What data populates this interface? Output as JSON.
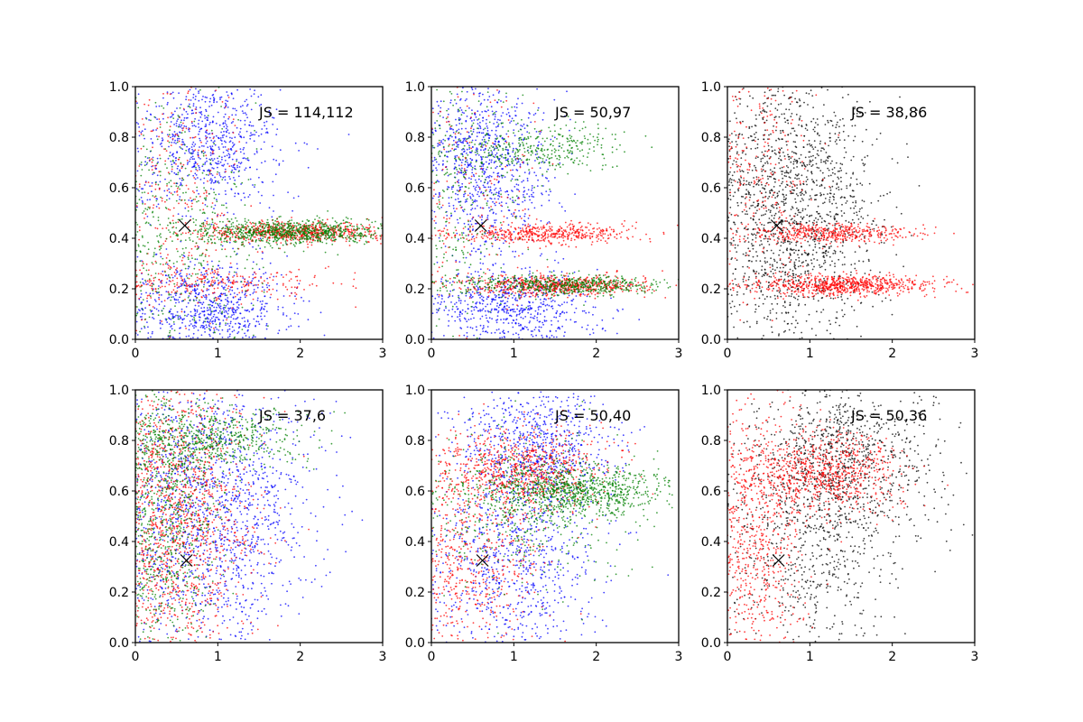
{
  "chart_data": [
    {
      "type": "scatter",
      "annotation": "JS = 114,112",
      "xlim": [
        0,
        3
      ],
      "ylim": [
        0,
        1
      ],
      "xticks": [
        "0",
        "1",
        "2",
        "3"
      ],
      "yticks": [
        "0.0",
        "0.2",
        "0.4",
        "0.6",
        "0.8",
        "1.0"
      ],
      "marker": {
        "x": 0.6,
        "y": 0.45
      },
      "series": [
        {
          "color": "#0000ff",
          "count": 1500,
          "clusters": [
            {
              "w": 0.5,
              "mx": 0.9,
              "sx": 0.45,
              "my": 0.78,
              "sy": 0.14
            },
            {
              "w": 0.5,
              "mx": 0.9,
              "sx": 0.45,
              "my": 0.12,
              "sy": 0.1
            }
          ]
        },
        {
          "color": "#ff0000",
          "count": 1200,
          "clusters": [
            {
              "w": 0.55,
              "mx": 1.9,
              "sx": 0.6,
              "my": 0.425,
              "sy": 0.02
            },
            {
              "w": 0.2,
              "mx": 1.0,
              "sx": 0.7,
              "my": 0.22,
              "sy": 0.03
            },
            {
              "w": 0.25,
              "mx": 0.5,
              "sx": 0.4,
              "my": 0.6,
              "sy": 0.3
            }
          ]
        },
        {
          "color": "#008000",
          "count": 1300,
          "clusters": [
            {
              "w": 0.65,
              "mx": 1.9,
              "sx": 0.6,
              "my": 0.425,
              "sy": 0.025
            },
            {
              "w": 0.35,
              "mx": 0.5,
              "sx": 0.5,
              "my": 0.4,
              "sy": 0.3
            }
          ]
        }
      ]
    },
    {
      "type": "scatter",
      "annotation": "JS = 50,97",
      "xlim": [
        0,
        3
      ],
      "ylim": [
        0,
        1
      ],
      "xticks": [
        "0",
        "1",
        "2",
        "3"
      ],
      "yticks": [
        "0.0",
        "0.2",
        "0.4",
        "0.6",
        "0.8",
        "1.0"
      ],
      "marker": {
        "x": 0.6,
        "y": 0.45
      },
      "series": [
        {
          "color": "#0000ff",
          "count": 1500,
          "clusters": [
            {
              "w": 0.55,
              "mx": 0.7,
              "sx": 0.4,
              "my": 0.72,
              "sy": 0.17
            },
            {
              "w": 0.45,
              "mx": 1.0,
              "sx": 0.5,
              "my": 0.12,
              "sy": 0.08
            }
          ]
        },
        {
          "color": "#ff0000",
          "count": 1300,
          "clusters": [
            {
              "w": 0.35,
              "mx": 1.4,
              "sx": 0.55,
              "my": 0.42,
              "sy": 0.02
            },
            {
              "w": 0.5,
              "mx": 1.5,
              "sx": 0.55,
              "my": 0.215,
              "sy": 0.02
            },
            {
              "w": 0.15,
              "mx": 0.5,
              "sx": 0.4,
              "my": 0.6,
              "sy": 0.3
            }
          ]
        },
        {
          "color": "#008000",
          "count": 1200,
          "clusters": [
            {
              "w": 0.45,
              "mx": 1.6,
              "sx": 0.6,
              "my": 0.215,
              "sy": 0.02
            },
            {
              "w": 0.3,
              "mx": 1.3,
              "sx": 0.55,
              "my": 0.75,
              "sy": 0.05
            },
            {
              "w": 0.25,
              "mx": 0.4,
              "sx": 0.4,
              "my": 0.6,
              "sy": 0.3
            }
          ]
        }
      ]
    },
    {
      "type": "scatter",
      "annotation": "JS = 38,86",
      "xlim": [
        0,
        3
      ],
      "ylim": [
        0,
        1
      ],
      "xticks": [
        "0",
        "1",
        "2",
        "3"
      ],
      "yticks": [
        "0.0",
        "0.2",
        "0.4",
        "0.6",
        "0.8",
        "1.0"
      ],
      "marker": {
        "x": 0.6,
        "y": 0.45
      },
      "series": [
        {
          "color": "#000000",
          "count": 1600,
          "clusters": [
            {
              "w": 1.0,
              "mx": 0.8,
              "sx": 0.5,
              "my": 0.5,
              "sy": 0.28
            }
          ]
        },
        {
          "color": "#ff0000",
          "count": 1400,
          "clusters": [
            {
              "w": 0.55,
              "mx": 1.4,
              "sx": 0.55,
              "my": 0.215,
              "sy": 0.02
            },
            {
              "w": 0.3,
              "mx": 1.3,
              "sx": 0.5,
              "my": 0.42,
              "sy": 0.02
            },
            {
              "w": 0.15,
              "mx": 0.4,
              "sx": 0.35,
              "my": 0.7,
              "sy": 0.25
            }
          ]
        }
      ]
    },
    {
      "type": "scatter",
      "annotation": "JS = 37,6",
      "xlim": [
        0,
        3
      ],
      "ylim": [
        0,
        1
      ],
      "xticks": [
        "0",
        "1",
        "2",
        "3"
      ],
      "yticks": [
        "0.0",
        "0.2",
        "0.4",
        "0.6",
        "0.8",
        "1.0"
      ],
      "marker": {
        "x": 0.62,
        "y": 0.325
      },
      "series": [
        {
          "color": "#0000ff",
          "count": 1500,
          "clusters": [
            {
              "w": 1.0,
              "mx": 0.95,
              "sx": 0.6,
              "my": 0.55,
              "sy": 0.28
            }
          ]
        },
        {
          "color": "#ff0000",
          "count": 1300,
          "clusters": [
            {
              "w": 1.0,
              "mx": 0.5,
              "sx": 0.45,
              "my": 0.5,
              "sy": 0.28
            }
          ]
        },
        {
          "color": "#008000",
          "count": 1300,
          "clusters": [
            {
              "w": 0.6,
              "mx": 0.4,
              "sx": 0.35,
              "my": 0.5,
              "sy": 0.28
            },
            {
              "w": 0.4,
              "mx": 0.9,
              "sx": 0.5,
              "my": 0.8,
              "sy": 0.06
            }
          ]
        }
      ]
    },
    {
      "type": "scatter",
      "annotation": "JS = 50,40",
      "xlim": [
        0,
        3
      ],
      "ylim": [
        0,
        1
      ],
      "xticks": [
        "0",
        "1",
        "2",
        "3"
      ],
      "yticks": [
        "0.0",
        "0.2",
        "0.4",
        "0.6",
        "0.8",
        "1.0"
      ],
      "marker": {
        "x": 0.62,
        "y": 0.325
      },
      "series": [
        {
          "color": "#0000ff",
          "count": 1500,
          "clusters": [
            {
              "w": 0.5,
              "mx": 1.3,
              "sx": 0.5,
              "my": 0.78,
              "sy": 0.12
            },
            {
              "w": 0.5,
              "mx": 1.0,
              "sx": 0.5,
              "my": 0.3,
              "sy": 0.2
            }
          ]
        },
        {
          "color": "#ff0000",
          "count": 1300,
          "clusters": [
            {
              "w": 0.6,
              "mx": 1.1,
              "sx": 0.5,
              "my": 0.68,
              "sy": 0.08
            },
            {
              "w": 0.4,
              "mx": 0.5,
              "sx": 0.45,
              "my": 0.3,
              "sy": 0.2
            }
          ]
        },
        {
          "color": "#008000",
          "count": 1300,
          "clusters": [
            {
              "w": 0.6,
              "mx": 1.8,
              "sx": 0.55,
              "my": 0.6,
              "sy": 0.05
            },
            {
              "w": 0.4,
              "mx": 1.2,
              "sx": 0.6,
              "my": 0.55,
              "sy": 0.15
            }
          ]
        }
      ]
    },
    {
      "type": "scatter",
      "annotation": "JS = 50,36",
      "xlim": [
        0,
        3
      ],
      "ylim": [
        0,
        1
      ],
      "xticks": [
        "0",
        "1",
        "2",
        "3"
      ],
      "yticks": [
        "0.0",
        "0.2",
        "0.4",
        "0.6",
        "0.8",
        "1.0"
      ],
      "marker": {
        "x": 0.62,
        "y": 0.325
      },
      "series": [
        {
          "color": "#000000",
          "count": 1500,
          "clusters": [
            {
              "w": 0.65,
              "mx": 1.4,
              "sx": 0.55,
              "my": 0.72,
              "sy": 0.16
            },
            {
              "w": 0.35,
              "mx": 1.0,
              "sx": 0.5,
              "my": 0.3,
              "sy": 0.2
            }
          ]
        },
        {
          "color": "#ff0000",
          "count": 1400,
          "clusters": [
            {
              "w": 0.55,
              "mx": 1.2,
              "sx": 0.45,
              "my": 0.67,
              "sy": 0.08
            },
            {
              "w": 0.45,
              "mx": 0.35,
              "sx": 0.35,
              "my": 0.45,
              "sy": 0.28
            }
          ]
        }
      ]
    }
  ]
}
